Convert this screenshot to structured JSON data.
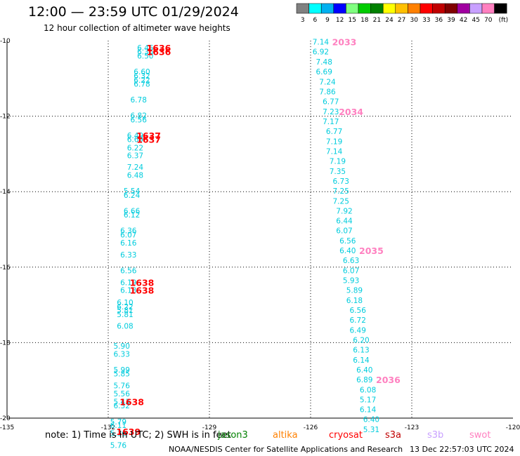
{
  "header": {
    "title": "12:00 — 23:59 UTC 01/29/2024",
    "subtitle": "12 hour collection of altimeter wave heights"
  },
  "color_legend": {
    "labels": [
      "3",
      "6",
      "9",
      "12",
      "15",
      "18",
      "21",
      "24",
      "27",
      "30",
      "33",
      "36",
      "39",
      "42",
      "45",
      "70",
      "(ft)"
    ],
    "colors": [
      "#808080",
      "#00ffff",
      "#00b0f0",
      "#0000ff",
      "#80ff80",
      "#00cc00",
      "#008000",
      "#ffff00",
      "#ffc000",
      "#ff8000",
      "#ff0000",
      "#c00000",
      "#800000",
      "#a000a0",
      "#c8a0ff",
      "#ff80c0",
      "#000000"
    ]
  },
  "footer": {
    "note": "note:  1) Time is in UTC; 2) SWH is in feet",
    "credit": "NOAA/NESDIS Center for Satellite Applications and Research",
    "timestamp": "13 Dec 22:57:03 UTC 2024"
  },
  "satellites": [
    {
      "name": "jason3",
      "color": "#008000"
    },
    {
      "name": "altika",
      "color": "#ff8000"
    },
    {
      "name": "cryosat",
      "color": "#ff0000"
    },
    {
      "name": "s3a",
      "color": "#c00000"
    },
    {
      "name": "s3b",
      "color": "#c8a0ff"
    },
    {
      "name": "swot",
      "color": "#ff80c0"
    }
  ],
  "chart_data": {
    "type": "scatter",
    "title": "12:00 — 23:59 UTC 01/29/2024",
    "subtitle": "12 hour collection of altimeter wave heights",
    "xlim": [
      -135,
      -120
    ],
    "ylim": [
      -20,
      -10
    ],
    "xticks": [
      "-135",
      "-132",
      "-129",
      "-126",
      "-123",
      "-120"
    ],
    "yticks": [
      "-10",
      "-12",
      "-14",
      "-16",
      "-18",
      "-20"
    ],
    "grid": true,
    "unit": "ft",
    "series": [
      {
        "name": "s3a",
        "color": "#00ccdd",
        "label_color": "#ff0000",
        "points": [
          {
            "x": -130.9,
            "y": -10.19,
            "v": "6.46"
          },
          {
            "x": -130.9,
            "y": -10.29,
            "v": "6.36"
          },
          {
            "x": -130.9,
            "y": -10.4,
            "v": "6.50"
          },
          {
            "x": -131.0,
            "y": -10.82,
            "v": "6.60"
          },
          {
            "x": -131.0,
            "y": -10.93,
            "v": "6.32"
          },
          {
            "x": -131.0,
            "y": -11.04,
            "v": "6.22"
          },
          {
            "x": -131.0,
            "y": -11.14,
            "v": "6.78"
          },
          {
            "x": -131.1,
            "y": -11.56,
            "v": "6.78"
          },
          {
            "x": -131.1,
            "y": -11.98,
            "v": "6.82"
          },
          {
            "x": -131.1,
            "y": -12.09,
            "v": "6.56"
          },
          {
            "x": -131.2,
            "y": -12.51,
            "v": "6.49"
          },
          {
            "x": -131.2,
            "y": -12.61,
            "v": "6.69"
          },
          {
            "x": -131.2,
            "y": -12.83,
            "v": "6.22"
          },
          {
            "x": -131.2,
            "y": -13.04,
            "v": "6.37"
          },
          {
            "x": -131.2,
            "y": -13.35,
            "v": "7.24"
          },
          {
            "x": -131.2,
            "y": -13.56,
            "v": "6.48"
          },
          {
            "x": -131.3,
            "y": -13.98,
            "v": "5.54"
          },
          {
            "x": -131.3,
            "y": -14.09,
            "v": "6.24"
          },
          {
            "x": -131.3,
            "y": -14.51,
            "v": "6.66"
          },
          {
            "x": -131.3,
            "y": -14.61,
            "v": "6.12"
          },
          {
            "x": -131.4,
            "y": -15.03,
            "v": "6.36"
          },
          {
            "x": -131.4,
            "y": -15.14,
            "v": "6.07"
          },
          {
            "x": -131.4,
            "y": -15.35,
            "v": "6.16"
          },
          {
            "x": -131.4,
            "y": -15.67,
            "v": "6.33"
          },
          {
            "x": -131.4,
            "y": -16.09,
            "v": "6.56"
          },
          {
            "x": -131.4,
            "y": -16.4,
            "v": "6.19"
          },
          {
            "x": -131.4,
            "y": -16.61,
            "v": "6.18"
          },
          {
            "x": -131.5,
            "y": -16.93,
            "v": "6.10"
          },
          {
            "x": -131.5,
            "y": -17.04,
            "v": "6.22"
          },
          {
            "x": -131.5,
            "y": -17.14,
            "v": "5.81"
          },
          {
            "x": -131.5,
            "y": -17.25,
            "v": "5.81"
          },
          {
            "x": -131.5,
            "y": -17.56,
            "v": "6.08"
          },
          {
            "x": -131.6,
            "y": -18.09,
            "v": "5.90"
          },
          {
            "x": -131.6,
            "y": -18.3,
            "v": "6.33"
          },
          {
            "x": -131.6,
            "y": -18.72,
            "v": "5.99"
          },
          {
            "x": -131.6,
            "y": -18.82,
            "v": "5.85"
          },
          {
            "x": -131.6,
            "y": -19.14,
            "v": "5.76"
          },
          {
            "x": -131.6,
            "y": -19.35,
            "v": "5.56"
          },
          {
            "x": -131.6,
            "y": -19.56,
            "v": "5.43"
          },
          {
            "x": -131.6,
            "y": -19.67,
            "v": "6.32"
          },
          {
            "x": -131.7,
            "y": -20.09,
            "v": "5.79"
          },
          {
            "x": -131.7,
            "y": -20.19,
            "v": "6.11"
          },
          {
            "x": -131.7,
            "y": -20.4,
            "v": "5.30"
          },
          {
            "x": -131.7,
            "y": -20.72,
            "v": "5.76"
          }
        ],
        "labels": [
          {
            "x": -130.5,
            "y": -10.19,
            "text": "1636"
          },
          {
            "x": -130.5,
            "y": -10.29,
            "text": "1636"
          },
          {
            "x": -130.8,
            "y": -12.51,
            "text": "1637"
          },
          {
            "x": -130.8,
            "y": -12.61,
            "text": "1637"
          },
          {
            "x": -131.0,
            "y": -16.4,
            "text": "1638"
          },
          {
            "x": -131.0,
            "y": -16.61,
            "text": "1638"
          },
          {
            "x": -131.3,
            "y": -19.56,
            "text": "1638"
          },
          {
            "x": -131.4,
            "y": -20.35,
            "text": "1639"
          }
        ]
      },
      {
        "name": "swot",
        "color": "#00ccdd",
        "label_color": "#ff80c0",
        "points": [
          {
            "x": -125.7,
            "y": -10.03,
            "v": "7.14"
          },
          {
            "x": -125.7,
            "y": -10.29,
            "v": "6.92"
          },
          {
            "x": -125.6,
            "y": -10.56,
            "v": "7.48"
          },
          {
            "x": -125.6,
            "y": -10.82,
            "v": "6.69"
          },
          {
            "x": -125.5,
            "y": -11.09,
            "v": "7.24"
          },
          {
            "x": -125.5,
            "y": -11.35,
            "v": "7.86"
          },
          {
            "x": -125.4,
            "y": -11.61,
            "v": "6.77"
          },
          {
            "x": -125.4,
            "y": -11.88,
            "v": "7.23"
          },
          {
            "x": -125.4,
            "y": -12.14,
            "v": "7.17"
          },
          {
            "x": -125.3,
            "y": -12.4,
            "v": "6.77"
          },
          {
            "x": -125.3,
            "y": -12.67,
            "v": "7.19"
          },
          {
            "x": -125.3,
            "y": -12.93,
            "v": "7.14"
          },
          {
            "x": -125.2,
            "y": -13.19,
            "v": "7.19"
          },
          {
            "x": -125.2,
            "y": -13.46,
            "v": "7.35"
          },
          {
            "x": -125.1,
            "y": -13.72,
            "v": "6.73"
          },
          {
            "x": -125.1,
            "y": -13.98,
            "v": "7.25"
          },
          {
            "x": -125.1,
            "y": -14.25,
            "v": "7.25"
          },
          {
            "x": -125.0,
            "y": -14.51,
            "v": "7.92"
          },
          {
            "x": -125.0,
            "y": -14.77,
            "v": "6.44"
          },
          {
            "x": -125.0,
            "y": -15.03,
            "v": "6.07"
          },
          {
            "x": -124.9,
            "y": -15.3,
            "v": "6.56"
          },
          {
            "x": -124.9,
            "y": -15.56,
            "v": "6.40"
          },
          {
            "x": -124.8,
            "y": -15.82,
            "v": "6.63"
          },
          {
            "x": -124.8,
            "y": -16.09,
            "v": "6.07"
          },
          {
            "x": -124.8,
            "y": -16.35,
            "v": "5.93"
          },
          {
            "x": -124.7,
            "y": -16.61,
            "v": "5.89"
          },
          {
            "x": -124.7,
            "y": -16.88,
            "v": "6.18"
          },
          {
            "x": -124.6,
            "y": -17.14,
            "v": "6.56"
          },
          {
            "x": -124.6,
            "y": -17.4,
            "v": "6.72"
          },
          {
            "x": -124.6,
            "y": -17.67,
            "v": "6.49"
          },
          {
            "x": -124.5,
            "y": -17.93,
            "v": "6.20"
          },
          {
            "x": -124.5,
            "y": -18.19,
            "v": "6.13"
          },
          {
            "x": -124.5,
            "y": -18.46,
            "v": "6.14"
          },
          {
            "x": -124.4,
            "y": -18.72,
            "v": "6.40"
          },
          {
            "x": -124.4,
            "y": -18.98,
            "v": "6.89"
          },
          {
            "x": -124.3,
            "y": -19.25,
            "v": "6.08"
          },
          {
            "x": -124.3,
            "y": -19.51,
            "v": "5.17"
          },
          {
            "x": -124.3,
            "y": -19.77,
            "v": "6.14"
          },
          {
            "x": -124.2,
            "y": -20.03,
            "v": "6.40"
          },
          {
            "x": -124.2,
            "y": -20.3,
            "v": "5.31"
          }
        ],
        "labels": [
          {
            "x": -125.0,
            "y": -10.03,
            "text": "2033"
          },
          {
            "x": -124.8,
            "y": -11.88,
            "text": "2034"
          },
          {
            "x": -124.2,
            "y": -15.56,
            "text": "2035"
          },
          {
            "x": -123.7,
            "y": -18.98,
            "text": "2036"
          }
        ]
      }
    ]
  }
}
